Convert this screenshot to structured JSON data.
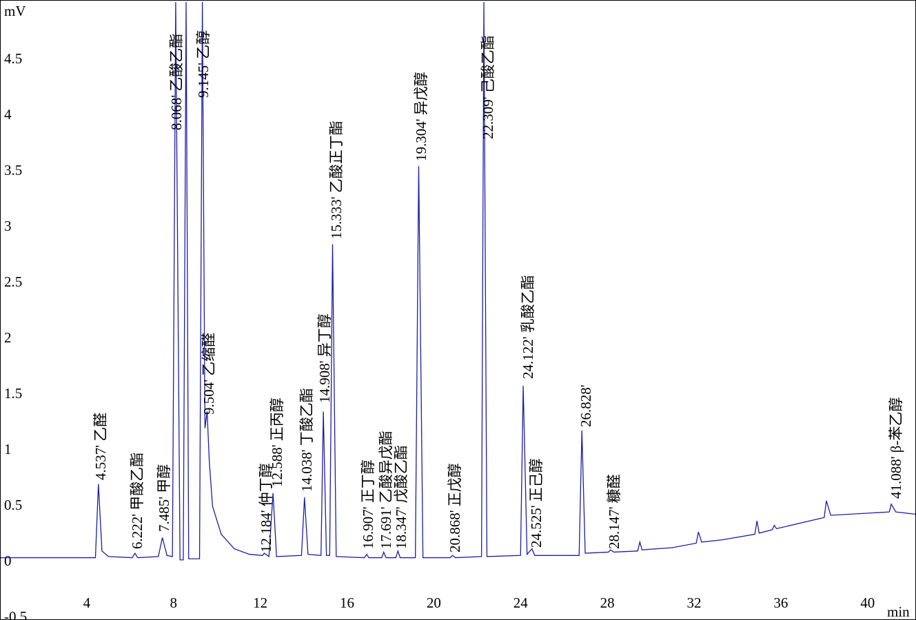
{
  "chart_data": {
    "type": "line",
    "y_label": "mV",
    "x_label": "min",
    "xlim": [
      0,
      42.2
    ],
    "ylim": [
      -0.5,
      5.02
    ],
    "xticks": [
      4,
      8,
      12,
      16,
      20,
      24,
      28,
      32,
      36,
      40
    ],
    "yticks": [
      -0.5,
      0,
      0.5,
      1,
      1.5,
      2,
      2.5,
      3,
      3.5,
      4,
      4.5
    ],
    "grid": false,
    "series": [
      {
        "color": "#1c1ca8",
        "x": [
          0,
          4.4,
          4.537,
          4.7,
          5,
          6.1,
          6.222,
          6.35,
          7.3,
          7.485,
          7.7,
          7.95,
          8.1,
          8.3,
          8.45,
          8.58,
          8.7,
          9.2,
          9.33,
          9.45,
          9.55,
          9.65,
          9.8,
          10.2,
          10.8,
          11.5,
          12.1,
          12.184,
          12.4,
          12.588,
          12.75,
          13.9,
          14.038,
          14.2,
          14.8,
          14.908,
          15.05,
          15.2,
          15.333,
          15.5,
          16.8,
          16.907,
          17.0,
          17.6,
          17.691,
          17.8,
          18.25,
          18.347,
          18.45,
          19.15,
          19.304,
          19.5,
          20.75,
          20.868,
          21,
          22.2,
          22.309,
          22.45,
          24.0,
          24.122,
          24.3,
          24.525,
          24.65,
          26.7,
          26.828,
          26.98,
          28.05,
          28.147,
          28.3,
          29.4,
          29.5,
          29.6,
          31,
          32.1,
          32.2,
          32.35,
          33.3,
          34.8,
          34.9,
          35.0,
          35.6,
          35.7,
          35.8,
          38.0,
          38.1,
          38.3,
          41,
          41.088,
          41.3,
          42.2
        ],
        "values": [
          0.04,
          0.04,
          0.7,
          0.1,
          0.05,
          0.04,
          0.08,
          0.04,
          0.05,
          0.22,
          0.06,
          0.05,
          5.02,
          0.02,
          0.02,
          5.02,
          0.03,
          0.03,
          5.02,
          1.2,
          1.35,
          0.9,
          0.5,
          0.25,
          0.12,
          0.07,
          0.06,
          0.08,
          0.05,
          0.62,
          0.05,
          0.06,
          0.58,
          0.07,
          0.06,
          1.35,
          0.06,
          0.06,
          2.85,
          0.05,
          0.04,
          0.07,
          0.04,
          0.04,
          0.09,
          0.04,
          0.04,
          0.1,
          0.04,
          0.04,
          3.55,
          0.04,
          0.04,
          0.06,
          0.04,
          0.05,
          5.02,
          0.05,
          0.06,
          1.58,
          0.07,
          0.12,
          0.06,
          0.06,
          1.18,
          0.08,
          0.09,
          0.11,
          0.09,
          0.1,
          0.18,
          0.11,
          0.13,
          0.17,
          0.27,
          0.18,
          0.2,
          0.25,
          0.37,
          0.26,
          0.29,
          0.33,
          0.3,
          0.4,
          0.55,
          0.42,
          0.45,
          0.52,
          0.45,
          0.43
        ]
      }
    ],
    "annotations": [
      "4.537' 乙醛",
      "6.222' 甲酸乙酯",
      "7.485' 甲醇",
      "8.068' 乙酸乙酯",
      "9.145' 乙醇",
      "9.504' 乙缩醛",
      "12.184' 仲丁醇",
      "12.588' 正丙醇",
      "14.038' 丁酸乙酯",
      "14.908' 异丁醇",
      "15.333' 乙酸正丁酯",
      "16.907' 正丁醇",
      "17.691' 乙酸异戊酯",
      "18.347' 戊酸乙酯",
      "19.304' 异戊醇",
      "20.868' 正戊醇",
      "22.309' 己酸乙酯",
      "24.122' 乳酸乙酯",
      "24.525' 正己醇",
      "26.828'",
      "28.147' 糠醛",
      "41.088' β-苯乙醇"
    ]
  }
}
